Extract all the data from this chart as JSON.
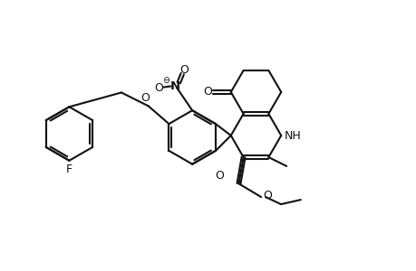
{
  "bg": "#ffffff",
  "lc": "#111111",
  "lw": 1.5,
  "fs": 9.0,
  "figsize": [
    4.6,
    3.0
  ],
  "dpi": 100,
  "xlim": [
    0,
    460
  ],
  "ylim": [
    0,
    300
  ]
}
